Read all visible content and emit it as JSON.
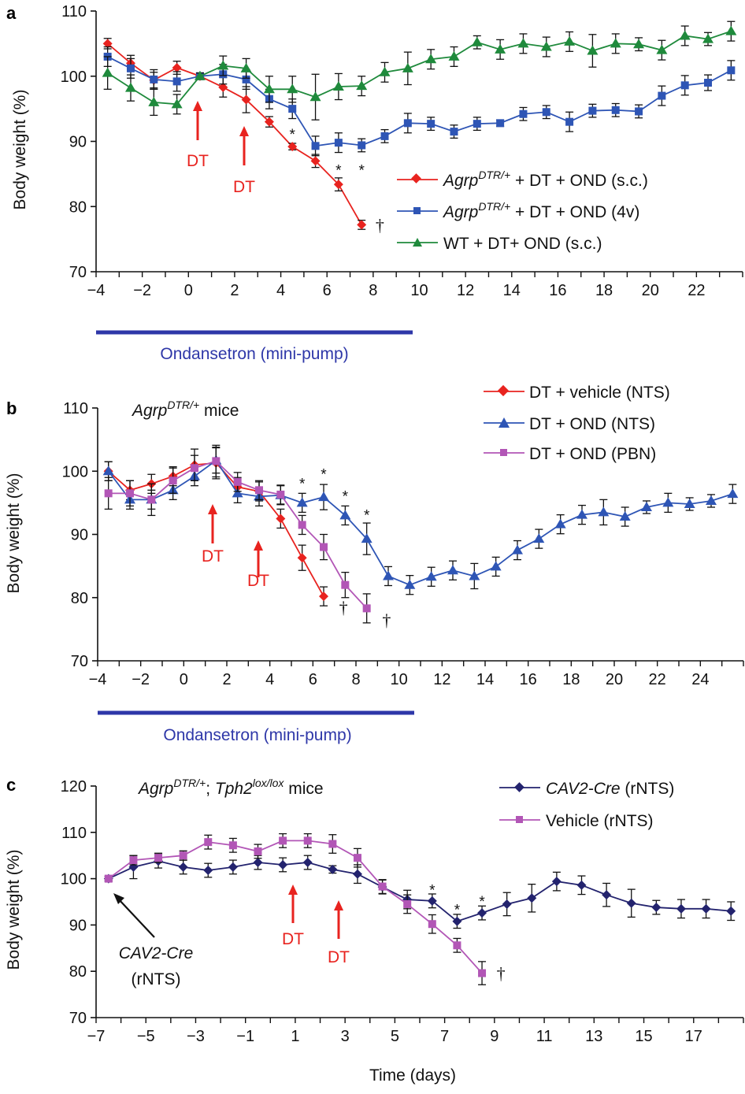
{
  "colors": {
    "red": "#e8231f",
    "blue": "#2e55b5",
    "green": "#1f8a3c",
    "navy": "#23236e",
    "purple": "#b256b6",
    "bar": "#2e37a8",
    "dt": "#e8231f",
    "black": "#111111"
  },
  "shared": {
    "time_label": "Time (days)",
    "ondansetron_label": "Ondansetron (mini-pump)",
    "dt_label": "DT",
    "star": "*",
    "dagger": "†"
  },
  "panels": {
    "a": {
      "letter": "a",
      "ylabel": "Body weight (%)",
      "legend": [
        {
          "pre": "Agrp",
          "sup": "DTR/+",
          "post": " + DT + OND (s.c.)"
        },
        {
          "pre": "Agrp",
          "sup": "DTR/+",
          "post": " + DT + OND (4v)"
        },
        {
          "pre": "",
          "sup": "",
          "post": "WT + DT+ OND (s.c.)"
        }
      ]
    },
    "b": {
      "letter": "b",
      "ylabel": "Body weight (%)",
      "title_pre": "Agrp",
      "title_sup": "DTR/+",
      "title_post": " mice",
      "legend": [
        {
          "text": "DT + vehicle (NTS)"
        },
        {
          "text": "DT + OND (NTS)"
        },
        {
          "text": "DT + OND (PBN)"
        }
      ]
    },
    "c": {
      "letter": "c",
      "ylabel": "Body weight (%)",
      "title_pre": "Agrp",
      "title_sup1": "DTR/+",
      "title_mid": "; ",
      "title_ital2": "Tph2",
      "title_sup2": "lox/lox",
      "title_post": " mice",
      "legend": [
        {
          "text": "CAV2-Cre",
          "ital": true,
          "post": " (rNTS)"
        },
        {
          "text": "Vehicle (rNTS)",
          "ital": false,
          "post": ""
        }
      ],
      "cav2_line1": "CAV2-Cre",
      "cav2_line2": "(rNTS)"
    }
  },
  "chart_data": [
    {
      "panel": "a",
      "type": "line",
      "xlabel": "",
      "ylabel": "Body weight (%)",
      "xlim": [
        -4,
        24
      ],
      "ylim": [
        70,
        110
      ],
      "xticks": [
        -4,
        -2,
        0,
        2,
        4,
        6,
        8,
        10,
        12,
        14,
        16,
        18,
        20,
        22
      ],
      "yticks": [
        70,
        80,
        90,
        100,
        110
      ],
      "dt_days": [
        0.5,
        2.5
      ],
      "ondansetron_days": [
        -4,
        9.7
      ],
      "series": [
        {
          "name": "AgrpDTR/+ + DT + OND (s.c.)",
          "color": "red",
          "marker": "diamond",
          "x": [
            -3.5,
            -2.5,
            -1.5,
            -0.5,
            0.5,
            1.5,
            2.5,
            3.5,
            4.5,
            5.5,
            6.5,
            7.5
          ],
          "y": [
            105,
            102,
            99.4,
            101.3,
            100,
            98.3,
            96.4,
            93,
            89.2,
            87,
            83.4,
            77.2
          ],
          "err": [
            0.8,
            1.2,
            1.2,
            1,
            0.5,
            1.5,
            2,
            0.8,
            0.5,
            1,
            1,
            0.7
          ]
        },
        {
          "name": "AgrpDTR/+ + DT + OND (4v)",
          "color": "blue",
          "marker": "square",
          "x": [
            -3.5,
            -2.5,
            -1.5,
            -0.5,
            0.5,
            1.5,
            2.5,
            3.5,
            4.5,
            5.5,
            6.5,
            7.5,
            8.5,
            9.5,
            10.5,
            11.5,
            12.5,
            13.5,
            14.5,
            15.5,
            16.5,
            17.5,
            18.5,
            19.5,
            20.5,
            21.5,
            22.5,
            23.5
          ],
          "y": [
            103,
            101.2,
            99.5,
            99.2,
            100,
            100.3,
            99.5,
            96.5,
            95,
            89.3,
            89.8,
            89.4,
            90.8,
            92.8,
            92.7,
            91.5,
            92.7,
            92.8,
            94.2,
            94.5,
            93,
            94.7,
            94.8,
            94.6,
            97,
            98.6,
            99,
            100.9
          ],
          "err": [
            1.5,
            1.5,
            1.5,
            1.5,
            0.5,
            1.5,
            1.5,
            1.5,
            1.5,
            1.5,
            1.5,
            1,
            1,
            1.5,
            1,
            1,
            1,
            0.5,
            1,
            1,
            1.5,
            1,
            1,
            1,
            1.5,
            1.5,
            1.2,
            1.5
          ]
        },
        {
          "name": "WT + DT+ OND (s.c.)",
          "color": "green",
          "marker": "triangle",
          "x": [
            -3.5,
            -2.5,
            -1.5,
            -0.5,
            0.5,
            1.5,
            2.5,
            3.5,
            4.5,
            5.5,
            6.5,
            7.5,
            8.5,
            9.5,
            10.5,
            11.5,
            12.5,
            13.5,
            14.5,
            15.5,
            16.5,
            17.5,
            18.5,
            19.5,
            20.5,
            21.5,
            22.5,
            23.5
          ],
          "y": [
            100.5,
            98.2,
            96,
            95.7,
            100,
            101.6,
            101.2,
            98,
            98,
            96.8,
            98.4,
            98.5,
            100.6,
            101.2,
            102.6,
            103,
            105.2,
            104.1,
            105,
            104.5,
            105.3,
            103.9,
            105,
            104.9,
            104,
            106.2,
            105.7,
            106.9
          ],
          "err": [
            2.5,
            2,
            2,
            1.5,
            0.5,
            1.5,
            1.5,
            2,
            2,
            3.5,
            2,
            1.5,
            1.5,
            2.5,
            1.5,
            1.5,
            1,
            1.5,
            1.5,
            1.5,
            1.5,
            2.5,
            1.5,
            1,
            1.5,
            1.5,
            1,
            1.5
          ]
        }
      ],
      "annotations": [
        {
          "text": "*",
          "x": 4.5,
          "y": 91
        },
        {
          "text": "*",
          "x": 6.5,
          "y": 85.5
        },
        {
          "text": "*",
          "x": 7.5,
          "y": 85.5
        },
        {
          "text": "†",
          "x": 7.9,
          "y": 77.2
        }
      ]
    },
    {
      "panel": "b",
      "type": "line",
      "xlabel": "",
      "ylabel": "Body weight (%)",
      "xlim": [
        -4,
        26
      ],
      "ylim": [
        70,
        110
      ],
      "xticks": [
        -4,
        -2,
        0,
        2,
        4,
        6,
        8,
        10,
        12,
        14,
        16,
        18,
        20,
        22,
        24
      ],
      "yticks": [
        70,
        80,
        90,
        100,
        110
      ],
      "dt_days": [
        1.5,
        3.5
      ],
      "ondansetron_days": [
        -4,
        10.6
      ],
      "series": [
        {
          "name": "DT + vehicle (NTS)",
          "color": "red",
          "marker": "diamond",
          "x": [
            -3.5,
            -2.5,
            -1.5,
            -0.5,
            0.5,
            1.5,
            2.5,
            3.5,
            4.5,
            5.5,
            6.5
          ],
          "y": [
            100,
            97,
            98,
            99.2,
            101,
            101.3,
            97.5,
            96.8,
            92.5,
            86.3,
            80.2
          ],
          "err": [
            1.5,
            1.5,
            1.5,
            1.5,
            2.5,
            2.5,
            1.5,
            1.5,
            1.5,
            2,
            1.5
          ]
        },
        {
          "name": "DT + OND (NTS)",
          "color": "blue",
          "marker": "triangle",
          "x": [
            -3.5,
            -2.5,
            -1.5,
            -0.5,
            0.5,
            1.5,
            2.5,
            3.5,
            4.5,
            5.5,
            6.5,
            7.5,
            8.5,
            9.5,
            10.5,
            11.5,
            12.5,
            13.5,
            14.5,
            15.5,
            16.5,
            17.5,
            18.5,
            19.5,
            20.5,
            21.5,
            22.5,
            23.5,
            24.5,
            25.5
          ],
          "y": [
            100,
            95.5,
            95.5,
            97,
            99.2,
            101.7,
            96.5,
            96,
            96.2,
            95,
            95.9,
            93,
            89.3,
            83.4,
            82,
            83.3,
            84.3,
            83.4,
            84.9,
            87.5,
            89.3,
            91.6,
            93.1,
            93.5,
            92.8,
            94.3,
            95,
            94.8,
            95.3,
            96.4
          ],
          "err": [
            1.5,
            1.5,
            1.5,
            1.5,
            1.5,
            2,
            1.5,
            1.5,
            1.5,
            1.5,
            2,
            1.5,
            2.5,
            1.5,
            1.5,
            1.5,
            1.5,
            2,
            1.5,
            1.5,
            1.5,
            1.5,
            1.5,
            2,
            1.5,
            1,
            1.5,
            1,
            1,
            1.5
          ]
        },
        {
          "name": "DT + OND (PBN)",
          "color": "purple",
          "marker": "square",
          "x": [
            -3.5,
            -2.5,
            -1.5,
            -0.5,
            0.5,
            1.5,
            2.5,
            3.5,
            4.5,
            5.5,
            6.5,
            7.5,
            8.5
          ],
          "y": [
            96.5,
            96.5,
            95.5,
            98.5,
            100.5,
            101.6,
            98.3,
            97,
            96.3,
            91.5,
            88,
            82,
            78.3
          ],
          "err": [
            2.5,
            2,
            2.5,
            2,
            2,
            2.5,
            1.5,
            1.5,
            1.5,
            1.5,
            2,
            2,
            2.3
          ]
        }
      ],
      "annotations": [
        {
          "text": "*",
          "x": 5.5,
          "y": 98
        },
        {
          "text": "*",
          "x": 6.5,
          "y": 99.5
        },
        {
          "text": "*",
          "x": 7.5,
          "y": 96
        },
        {
          "text": "*",
          "x": 8.5,
          "y": 93
        },
        {
          "text": "†",
          "x": 7.0,
          "y": 78.5
        },
        {
          "text": "†",
          "x": 9.0,
          "y": 76.5
        }
      ]
    },
    {
      "panel": "c",
      "type": "line",
      "xlabel": "Time (days)",
      "ylabel": "Body weight (%)",
      "xlim": [
        -7,
        19
      ],
      "ylim": [
        70,
        120
      ],
      "xticks": [
        -7,
        -5,
        -3,
        -1,
        1,
        3,
        5,
        7,
        9,
        11,
        13,
        15,
        17
      ],
      "yticks": [
        70,
        80,
        90,
        100,
        110,
        120
      ],
      "dt_days": [
        1,
        2.8
      ],
      "series": [
        {
          "name": "CAV2-Cre (rNTS)",
          "color": "navy",
          "marker": "diamond",
          "x": [
            -6.5,
            -5.5,
            -4.5,
            -3.5,
            -2.5,
            -1.5,
            -0.5,
            0.5,
            1.5,
            2.5,
            3.5,
            4.5,
            5.5,
            6.5,
            7.5,
            8.5,
            9.5,
            10.5,
            11.5,
            12.5,
            13.5,
            14.5,
            15.5,
            16.5,
            17.5,
            18.5
          ],
          "y": [
            100,
            102.5,
            103.8,
            102.5,
            101.8,
            102.5,
            103.5,
            103,
            103.5,
            102,
            101,
            98.2,
            95.5,
            95.2,
            90.8,
            92.6,
            94.5,
            95.8,
            99.4,
            98.6,
            96.5,
            94.7,
            93.8,
            93.5,
            93.5,
            93
          ],
          "err": [
            0.5,
            2.5,
            1.5,
            1.5,
            1.5,
            1.5,
            1.5,
            1.5,
            1.5,
            0.8,
            2,
            1.5,
            2,
            1.5,
            1.5,
            1.5,
            2.5,
            3,
            2,
            2,
            2.5,
            3,
            1.5,
            2,
            2,
            2
          ]
        },
        {
          "name": "Vehicle (rNTS)",
          "color": "purple",
          "marker": "square",
          "x": [
            -6.5,
            -5.5,
            -4.5,
            -3.5,
            -2.5,
            -1.5,
            -0.5,
            0.5,
            1.5,
            2.5,
            3.5,
            4.5,
            5.5,
            6.5,
            7.5,
            8.5
          ],
          "y": [
            100,
            104,
            104.5,
            105,
            107.9,
            107.2,
            105.9,
            108.2,
            108.2,
            107.5,
            104.5,
            98.3,
            94.5,
            90.2,
            85.6,
            79.6
          ],
          "err": [
            0.5,
            1,
            1,
            1,
            1.5,
            1.5,
            1.5,
            1.5,
            1.5,
            2,
            2,
            1.5,
            2,
            2,
            1.5,
            2.5
          ]
        }
      ],
      "annotations": [
        {
          "text": "*",
          "x": 6.5,
          "y": 97.5
        },
        {
          "text": "*",
          "x": 7.5,
          "y": 93.2
        },
        {
          "text": "*",
          "x": 8.5,
          "y": 95
        },
        {
          "text": "†",
          "x": 8.9,
          "y": 79.6
        }
      ]
    }
  ]
}
